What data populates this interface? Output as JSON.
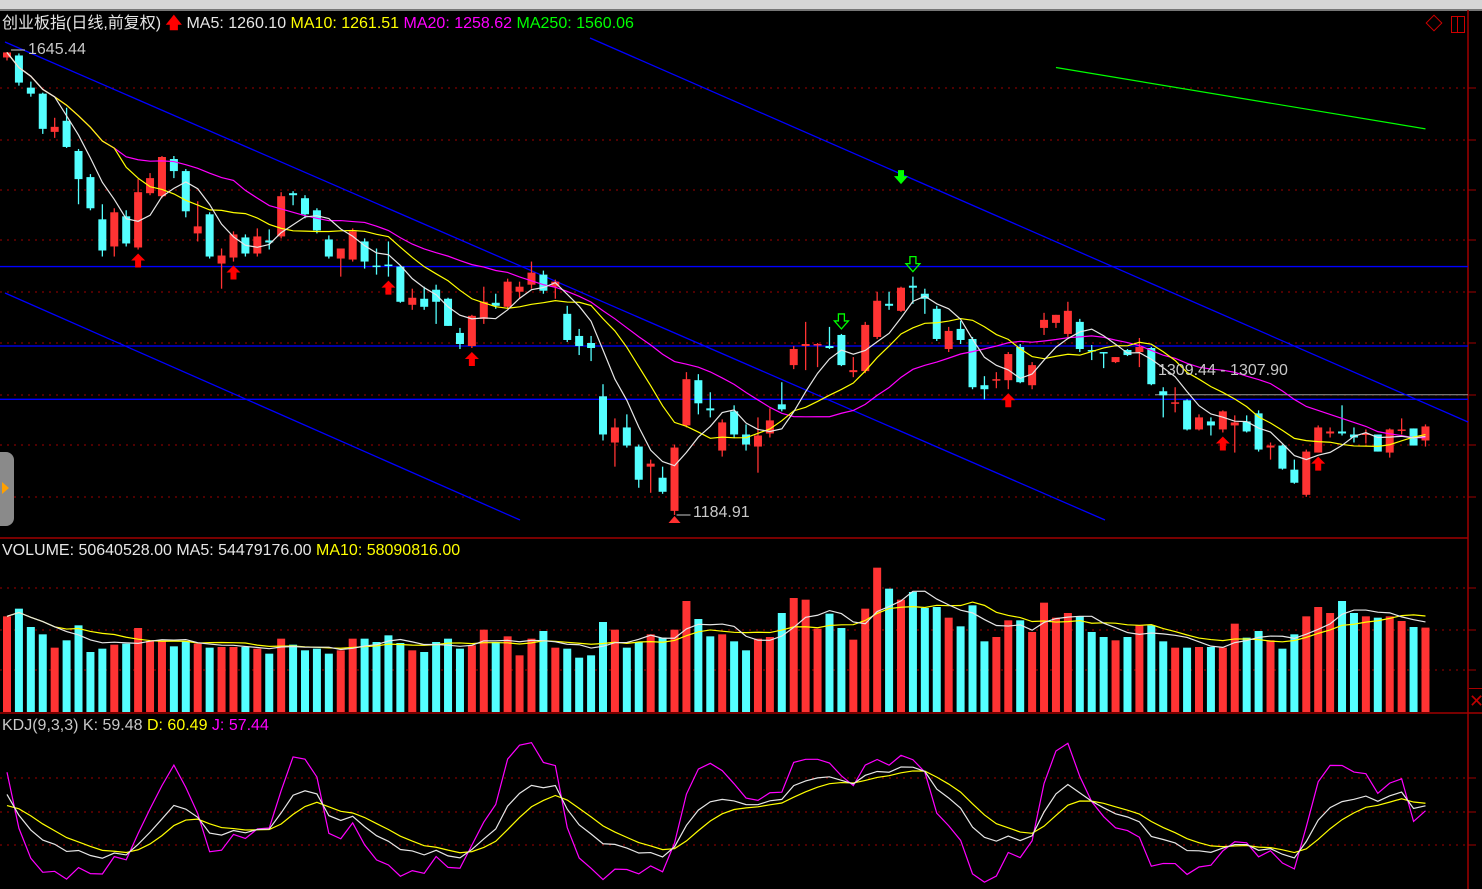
{
  "header": {
    "title": "创业板指(日线,前复权)",
    "ma5": "MA5: 1260.10",
    "ma10": "MA10: 1261.51",
    "ma20": "MA20: 1258.62",
    "ma250": "MA250: 1560.06"
  },
  "annotations": {
    "high_label": "1645.44",
    "low_label": "1184.91",
    "range_label": "1309.44 - 1307.90"
  },
  "volume_header": {
    "volume": "VOLUME: 50640528.00",
    "ma5": "MA5: 54479176.00",
    "ma10": "MA10: 58090816.00"
  },
  "kdj_header": {
    "name": "KDJ(9,3,3)",
    "k": "K: 59.48",
    "d": "D: 60.49",
    "j": "J: 57.44"
  },
  "colors": {
    "up": "#ff3333",
    "down": "#54ffff",
    "ma5": "#e6e6e6",
    "ma10": "#ffff00",
    "ma20": "#ff00ff",
    "ma250": "#00ff00",
    "trendline": "#0000ff",
    "grid": "#a00000"
  },
  "icons": [
    "diamond-icon",
    "panel-toggle-icon",
    "up-arrow-signal-icon",
    "down-arrow-signal-icon",
    "close-x-icon",
    "side-expand-arrow-icon"
  ],
  "chart_data": {
    "type": "candlestick",
    "title": "创业板指(日线,前复权)",
    "ohlc_fields": [
      "open",
      "high",
      "low",
      "close"
    ],
    "ohlc": [
      [
        1640,
        1645.44,
        1637,
        1645
      ],
      [
        1642,
        1644,
        1612,
        1615
      ],
      [
        1610,
        1616,
        1601,
        1604
      ],
      [
        1604,
        1605,
        1564,
        1569
      ],
      [
        1566,
        1580,
        1560,
        1571
      ],
      [
        1577,
        1590,
        1550,
        1551
      ],
      [
        1547,
        1549,
        1494,
        1519
      ],
      [
        1521,
        1524,
        1488,
        1490
      ],
      [
        1479,
        1494,
        1442,
        1448
      ],
      [
        1452,
        1490,
        1442,
        1486
      ],
      [
        1482,
        1488,
        1452,
        1455
      ],
      [
        1451,
        1519,
        1449,
        1506
      ],
      [
        1505,
        1525,
        1503,
        1520
      ],
      [
        1502,
        1542,
        1500,
        1541
      ],
      [
        1539,
        1542,
        1520,
        1527
      ],
      [
        1527,
        1529,
        1481,
        1487
      ],
      [
        1465,
        1497,
        1457,
        1472
      ],
      [
        1484,
        1486,
        1440,
        1442
      ],
      [
        1435,
        1450,
        1410,
        1443
      ],
      [
        1441,
        1467,
        1437,
        1464
      ],
      [
        1461,
        1464,
        1442,
        1445
      ],
      [
        1445,
        1470,
        1442,
        1462
      ],
      [
        1458,
        1469,
        1449,
        1456
      ],
      [
        1462,
        1506,
        1460,
        1502
      ],
      [
        1505,
        1507,
        1493,
        1503
      ],
      [
        1500,
        1503,
        1480,
        1484
      ],
      [
        1488,
        1490,
        1465,
        1468
      ],
      [
        1459,
        1463,
        1440,
        1442
      ],
      [
        1440,
        1450,
        1422,
        1450
      ],
      [
        1439,
        1470,
        1437,
        1467
      ],
      [
        1457,
        1460,
        1430,
        1437
      ],
      [
        1433,
        1450,
        1424,
        1432
      ],
      [
        1434,
        1457,
        1422,
        1433
      ],
      [
        1432,
        1433,
        1396,
        1397
      ],
      [
        1394,
        1410,
        1389,
        1401
      ],
      [
        1400,
        1412,
        1389,
        1392
      ],
      [
        1409,
        1414,
        1375,
        1397
      ],
      [
        1400,
        1401,
        1373,
        1373
      ],
      [
        1366,
        1371,
        1350,
        1355
      ],
      [
        1353,
        1384,
        1351,
        1383
      ],
      [
        1380,
        1412,
        1375,
        1397
      ],
      [
        1396,
        1405,
        1390,
        1393
      ],
      [
        1392,
        1420,
        1390,
        1417
      ],
      [
        1407,
        1417,
        1400,
        1412
      ],
      [
        1414,
        1437,
        1410,
        1426
      ],
      [
        1424,
        1428,
        1405,
        1408
      ],
      [
        1412,
        1419,
        1400,
        1417
      ],
      [
        1385,
        1393,
        1357,
        1359
      ],
      [
        1363,
        1370,
        1344,
        1353
      ],
      [
        1356,
        1363,
        1338,
        1351
      ],
      [
        1303,
        1315,
        1259,
        1265
      ],
      [
        1257,
        1281,
        1233,
        1272
      ],
      [
        1272,
        1285,
        1252,
        1254
      ],
      [
        1253,
        1255,
        1212,
        1220
      ],
      [
        1233,
        1240,
        1207,
        1236
      ],
      [
        1222,
        1233,
        1206,
        1208
      ],
      [
        1189,
        1255,
        1184.91,
        1252
      ],
      [
        1274,
        1327,
        1272,
        1320
      ],
      [
        1319,
        1325,
        1285,
        1296
      ],
      [
        1291,
        1307,
        1282,
        1289
      ],
      [
        1249,
        1280,
        1243,
        1277
      ],
      [
        1288,
        1294,
        1262,
        1265
      ],
      [
        1265,
        1275,
        1249,
        1255
      ],
      [
        1253,
        1282,
        1227,
        1264
      ],
      [
        1266,
        1291,
        1262,
        1279
      ],
      [
        1295,
        1317,
        1288,
        1290
      ],
      [
        1334,
        1353,
        1330,
        1350
      ],
      [
        1353,
        1377,
        1329,
        1355
      ],
      [
        1354,
        1356,
        1332,
        1355
      ],
      [
        1353,
        1372,
        1350,
        1351
      ],
      [
        1364,
        1365,
        1333,
        1334
      ],
      [
        1327,
        1342,
        1322,
        1329
      ],
      [
        1328,
        1377,
        1326,
        1374
      ],
      [
        1362,
        1407,
        1360,
        1398
      ],
      [
        1395,
        1407,
        1389,
        1393
      ],
      [
        1388,
        1412,
        1387,
        1411
      ],
      [
        1413,
        1422,
        1395,
        1411
      ],
      [
        1405,
        1410,
        1385,
        1400
      ],
      [
        1390,
        1393,
        1358,
        1360
      ],
      [
        1350,
        1372,
        1347,
        1368
      ],
      [
        1370,
        1378,
        1355,
        1359
      ],
      [
        1360,
        1362,
        1310,
        1312
      ],
      [
        1314,
        1323,
        1300,
        1310
      ],
      [
        1319,
        1327,
        1311,
        1320
      ],
      [
        1319,
        1347,
        1310,
        1345
      ],
      [
        1352,
        1355,
        1316,
        1317
      ],
      [
        1314,
        1337,
        1310,
        1334
      ],
      [
        1371,
        1386,
        1364,
        1379
      ],
      [
        1376,
        1384,
        1371,
        1384
      ],
      [
        1365,
        1397,
        1362,
        1388
      ],
      [
        1377,
        1380,
        1347,
        1350
      ],
      [
        1349,
        1354,
        1339,
        1348
      ],
      [
        1347,
        1347,
        1331,
        1346
      ],
      [
        1337,
        1342,
        1336,
        1342
      ],
      [
        1349,
        1350,
        1343,
        1344
      ],
      [
        1347,
        1361,
        1332,
        1352
      ],
      [
        1351,
        1352,
        1314,
        1315
      ],
      [
        1308,
        1312,
        1282,
        1304
      ],
      [
        1296,
        1312,
        1287,
        1297
      ],
      [
        1299,
        1300,
        1269,
        1270
      ],
      [
        1270,
        1285,
        1269,
        1282
      ],
      [
        1278,
        1282,
        1264,
        1274
      ],
      [
        1270,
        1289,
        1267,
        1288
      ],
      [
        1274,
        1284,
        1247,
        1277
      ],
      [
        1278,
        1284,
        1267,
        1268
      ],
      [
        1286,
        1289,
        1248,
        1250
      ],
      [
        1252,
        1257,
        1240,
        1254
      ],
      [
        1254,
        1255,
        1230,
        1231
      ],
      [
        1230,
        1240,
        1216,
        1217
      ],
      [
        1205,
        1250,
        1203,
        1248
      ],
      [
        1247,
        1274,
        1247,
        1272
      ],
      [
        1266,
        1272,
        1262,
        1268
      ],
      [
        1268,
        1294,
        1264,
        1266
      ],
      [
        1265,
        1272,
        1257,
        1262
      ],
      [
        1265,
        1270,
        1256,
        1266
      ],
      [
        1265,
        1265,
        1248,
        1248
      ],
      [
        1247,
        1271,
        1242,
        1270
      ],
      [
        1269,
        1281,
        1265,
        1270
      ],
      [
        1271,
        1271,
        1254,
        1254
      ],
      [
        1259,
        1275,
        1253,
        1273
      ]
    ],
    "volume": [
      57400000,
      62000000,
      51000000,
      46600000,
      38600000,
      43000000,
      52000000,
      36000000,
      38000000,
      40400000,
      41000000,
      50400000,
      42600000,
      42400000,
      39400000,
      42400000,
      41000000,
      38600000,
      39000000,
      39000000,
      39000000,
      38000000,
      35000000,
      44000000,
      40400000,
      37000000,
      38000000,
      35000000,
      37000000,
      44000000,
      44000000,
      42000000,
      46000000,
      41400000,
      37000000,
      36000000,
      42000000,
      44000000,
      38000000,
      40000000,
      49400000,
      42000000,
      45400000,
      34000000,
      44000000,
      48600000,
      38600000,
      38000000,
      32600000,
      34000000,
      54000000,
      49400000,
      38600000,
      42000000,
      46600000,
      44600000,
      49400000,
      66600000,
      55800000,
      45400000,
      46600000,
      42400000,
      37000000,
      44000000,
      45000000,
      59400000,
      68400000,
      67400000,
      50000000,
      59000000,
      50400000,
      43400000,
      62000000,
      86600000,
      74000000,
      67400000,
      72000000,
      62400000,
      63000000,
      56600000,
      51400000,
      64000000,
      42400000,
      45000000,
      55000000,
      55000000,
      48000000,
      65600000,
      56600000,
      59400000,
      57400000,
      48000000,
      45000000,
      43000000,
      45000000,
      52000000,
      52000000,
      42400000,
      38600000,
      38600000,
      39000000,
      39000000,
      38600000,
      53000000,
      44600000,
      48600000,
      43000000,
      38000000,
      46600000,
      57400000,
      63000000,
      59400000,
      66600000,
      59400000,
      57400000,
      56600000,
      57400000,
      54600000,
      51000000,
      50640528
    ],
    "ma250_visible": {
      "from_candle": 89,
      "to_candle": 120,
      "values": [
        1630,
        1569
      ]
    },
    "price_range": [
      1184.91,
      1645.44
    ],
    "horizontal_levels": [
      1432,
      1353,
      1300
    ],
    "range_line": [
      1309.44,
      1307.9
    ],
    "buy_signals": [
      12,
      20,
      33,
      40,
      85,
      103,
      111
    ],
    "sell_signals": [
      71,
      77
    ],
    "extra_sell_marker_price": 1520,
    "kdj_params": [
      9,
      3,
      3
    ],
    "grid": true
  }
}
